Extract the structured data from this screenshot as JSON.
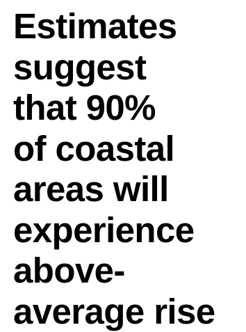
{
  "statement": {
    "lines": [
      "Estimates",
      "suggest",
      "that 90%",
      "of coastal",
      "areas will",
      "experience",
      "above-",
      "average rise"
    ]
  },
  "colors": {
    "background": "#ffffff",
    "text": "#000000"
  }
}
